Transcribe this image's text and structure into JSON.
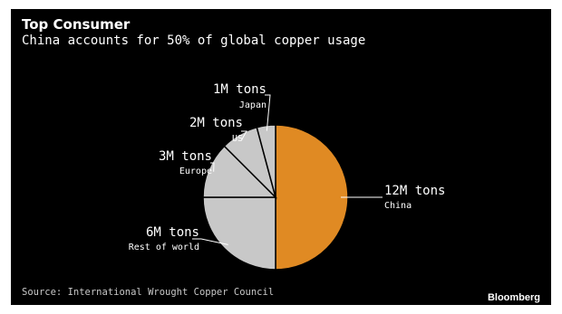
{
  "header": {
    "title": "Top Consumer",
    "subtitle": "China accounts for 50% of global copper usage"
  },
  "footer": {
    "source": "Source: International Wrought Copper Council",
    "brand": "Bloomberg"
  },
  "colors": {
    "background": "#000000",
    "china": "#e08a23",
    "other": "#c8c8c8",
    "slice_edge": "#000000",
    "leader": "#ffffff"
  },
  "chart_data": {
    "type": "pie",
    "title": "Top Consumer",
    "subtitle": "China accounts for 50% of global copper usage",
    "unit": "M tons",
    "slices": [
      {
        "name": "China",
        "value": 12,
        "value_label": "12M tons",
        "color": "#e08a23"
      },
      {
        "name": "Rest of world",
        "value": 6,
        "value_label": "6M tons",
        "color": "#c8c8c8"
      },
      {
        "name": "Europe",
        "value": 3,
        "value_label": "3M tons",
        "color": "#c8c8c8"
      },
      {
        "name": "US",
        "value": 2,
        "value_label": "2M tons",
        "color": "#c8c8c8"
      },
      {
        "name": "Japan",
        "value": 1,
        "value_label": "1M tons",
        "color": "#c8c8c8"
      }
    ]
  }
}
